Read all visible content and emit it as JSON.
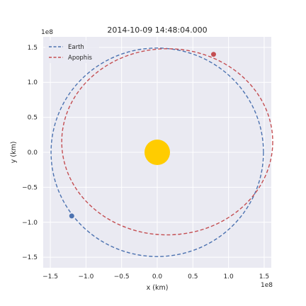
{
  "chart_data": {
    "type": "line",
    "title": "2014-10-09 14:48:04.000",
    "xlabel": "x (km)",
    "ylabel": "y (km)",
    "x_offset_label": "1e8",
    "y_offset_label": "1e8",
    "xlim": [
      -1.6,
      1.6
    ],
    "ylim": [
      -1.65,
      1.65
    ],
    "xticks": [
      -1.5,
      -1.0,
      -0.5,
      0.0,
      0.5,
      1.0,
      1.5
    ],
    "yticks": [
      -1.5,
      -1.0,
      -0.5,
      0.0,
      0.5,
      1.0,
      1.5
    ],
    "xtick_labels": [
      "−1.5",
      "−1.0",
      "−0.5",
      "0.0",
      "0.5",
      "1.0",
      "1.5"
    ],
    "ytick_labels": [
      "−1.5",
      "−1.0",
      "−0.5",
      "0.0",
      "0.5",
      "1.0",
      "1.5"
    ],
    "grid": true,
    "legend_position": "top-left",
    "background_color": "#eaeaf2",
    "series": [
      {
        "name": "Earth",
        "style": "dashed",
        "color": "#4c72b0",
        "orbit": {
          "center": [
            0.0,
            0.0
          ],
          "a": 1.49,
          "b": 1.49
        },
        "body_position": [
          -1.2,
          -0.91
        ]
      },
      {
        "name": "Apophis",
        "style": "dashed",
        "color": "#c44e52",
        "orbit": {
          "center": [
            0.14,
            0.15
          ],
          "a": 1.48,
          "b": 1.33
        },
        "body_position": [
          0.79,
          1.4
        ]
      }
    ],
    "sun": {
      "position": [
        0.0,
        0.0
      ],
      "color": "#ffcc00"
    }
  }
}
